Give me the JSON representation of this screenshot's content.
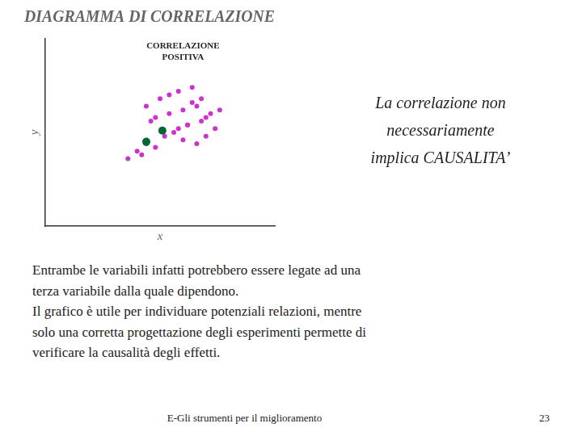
{
  "chart_data": {
    "type": "scatter",
    "title": "DIAGRAMMA DI CORRELAZIONE",
    "x_label": "x",
    "y_label": "y",
    "annotations": [
      "CORRELAZIONE\nPOSITIVA",
      "La correlazione non\nnecessariamente\nimplica CAUSALITA’",
      "Entrambe le variabili infatti potrebbero essere legate ad una",
      "terza variabile dalla quale dipendono.",
      "Il grafico è utile per individuare potenziali relazioni, mentre",
      "solo una corretta progettazione degli esperimenti permette di",
      "verificare la causalità degli effetti.",
      "E-Gli strumenti per il miglioramento",
      "23"
    ],
    "series": [
      {
        "color": "#cc33cc",
        "x": [
          2.2,
          2.5,
          2.7,
          2.9,
          3.2,
          2.4,
          2.7,
          3.0,
          3.2,
          3.4,
          2.8,
          3.1,
          3.4,
          3.6,
          3.8,
          3.3,
          3.5,
          3.7,
          2.0,
          2.2,
          2.6,
          2.9,
          3.1,
          3.5,
          1.8,
          2.1,
          2.4,
          3.0,
          2.3,
          3.3
        ],
        "values": [
          3.2,
          3.4,
          3.5,
          3.6,
          3.7,
          2.9,
          3.0,
          3.1,
          3.3,
          3.4,
          2.5,
          2.7,
          2.8,
          3.0,
          3.1,
          2.2,
          2.4,
          2.6,
          2.0,
          2.2,
          2.4,
          2.6,
          2.7,
          2.9,
          1.8,
          1.9,
          2.1,
          2.3,
          2.8,
          3.2
        ]
      },
      {
        "color": "#006633",
        "x": [
          2.55,
          2.2
        ],
        "values": [
          2.55,
          2.25
        ]
      }
    ],
    "xlim": [
      0,
      5.0
    ],
    "ylim": [
      0,
      5.0
    ],
    "tick_labels": false,
    "grid": false
  }
}
